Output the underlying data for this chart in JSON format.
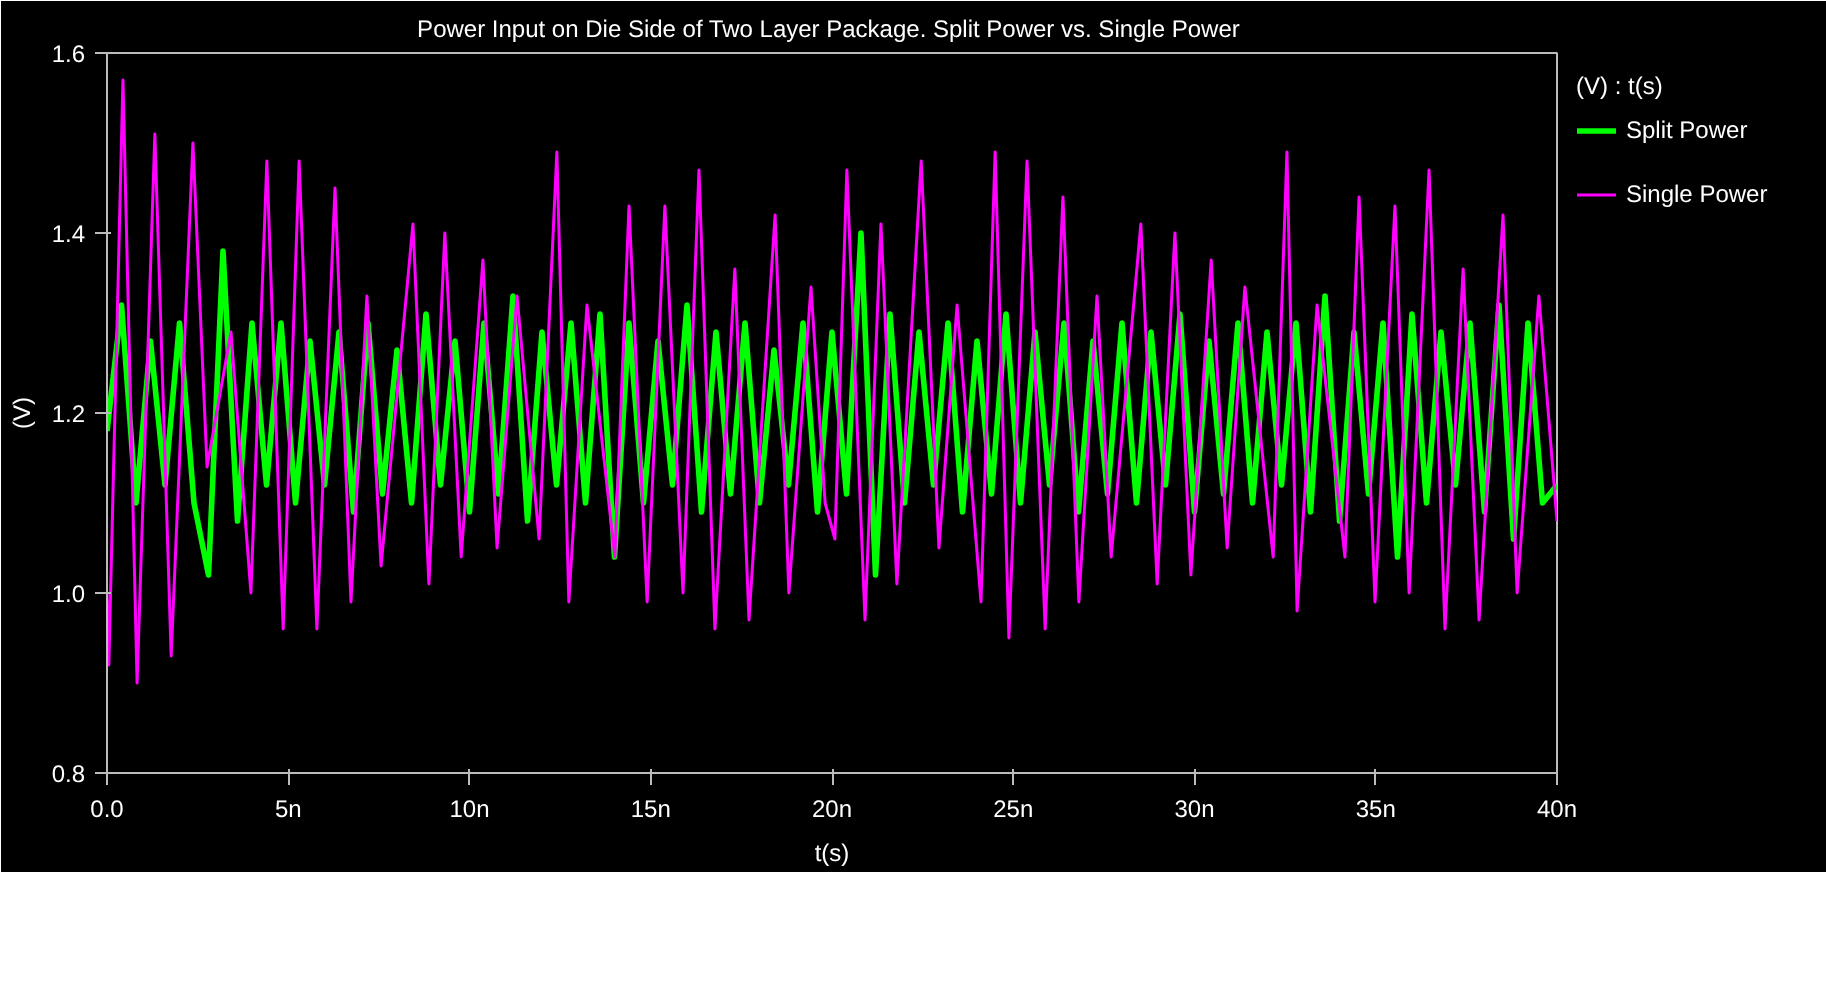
{
  "chart_data": {
    "type": "line",
    "title": "Power Input on Die Side of Two Layer Package.  Split Power vs. Single Power",
    "xlabel": "t(s)",
    "ylabel": "(V)",
    "legend_title": "(V) : t(s)",
    "legend": "top right",
    "grid": false,
    "line_style": "solid",
    "marker": "none",
    "xlim": [
      0,
      40
    ],
    "ylim": [
      0.8,
      1.6
    ],
    "xticks": [
      {
        "value": 0,
        "label": "0.0"
      },
      {
        "value": 5,
        "label": "5n"
      },
      {
        "value": 10,
        "label": "10n"
      },
      {
        "value": 15,
        "label": "15n"
      },
      {
        "value": 20,
        "label": "20n"
      },
      {
        "value": 25,
        "label": "25n"
      },
      {
        "value": 30,
        "label": "30n"
      },
      {
        "value": 35,
        "label": "35n"
      },
      {
        "value": 40,
        "label": "40n"
      }
    ],
    "yticks": [
      {
        "value": 0.8,
        "label": "0.8"
      },
      {
        "value": 1.0,
        "label": "1.0"
      },
      {
        "value": 1.2,
        "label": "1.2"
      },
      {
        "value": 1.4,
        "label": "1.4"
      },
      {
        "value": 1.6,
        "label": "1.6"
      }
    ],
    "series": [
      {
        "name": "Split Power",
        "color": "#00ff00",
        "x": [
          0,
          0.4,
          0.8,
          1.2,
          1.6,
          2.0,
          2.4,
          2.8,
          3.2,
          3.6,
          4.0,
          4.4,
          4.8,
          5.2,
          5.6,
          6.0,
          6.4,
          6.8,
          7.2,
          7.6,
          8.0,
          8.4,
          8.8,
          9.2,
          9.6,
          10.0,
          10.4,
          10.8,
          11.2,
          11.6,
          12.0,
          12.4,
          12.8,
          13.2,
          13.6,
          14.0,
          14.4,
          14.8,
          15.2,
          15.6,
          16.0,
          16.4,
          16.8,
          17.2,
          17.6,
          18.0,
          18.4,
          18.8,
          19.2,
          19.6,
          20.0,
          20.4,
          20.8,
          21.2,
          21.6,
          22.0,
          22.4,
          22.8,
          23.2,
          23.6,
          24.0,
          24.4,
          24.8,
          25.2,
          25.6,
          26.0,
          26.4,
          26.8,
          27.2,
          27.6,
          28.0,
          28.4,
          28.8,
          29.2,
          29.6,
          30.0,
          30.4,
          30.8,
          31.2,
          31.6,
          32.0,
          32.4,
          32.8,
          33.2,
          33.6,
          34.0,
          34.4,
          34.8,
          35.2,
          35.6,
          36.0,
          36.4,
          36.8,
          37.2,
          37.6,
          38.0,
          38.4,
          38.8,
          39.2,
          39.6,
          40.0
        ],
        "values": [
          1.18,
          1.32,
          1.1,
          1.28,
          1.12,
          1.3,
          1.1,
          1.02,
          1.38,
          1.08,
          1.3,
          1.12,
          1.3,
          1.1,
          1.28,
          1.12,
          1.29,
          1.09,
          1.3,
          1.11,
          1.27,
          1.1,
          1.31,
          1.12,
          1.28,
          1.09,
          1.3,
          1.11,
          1.33,
          1.08,
          1.29,
          1.12,
          1.3,
          1.1,
          1.31,
          1.04,
          1.3,
          1.1,
          1.28,
          1.12,
          1.32,
          1.09,
          1.29,
          1.11,
          1.3,
          1.1,
          1.27,
          1.12,
          1.3,
          1.09,
          1.29,
          1.11,
          1.4,
          1.02,
          1.31,
          1.1,
          1.29,
          1.12,
          1.3,
          1.09,
          1.28,
          1.11,
          1.31,
          1.1,
          1.29,
          1.12,
          1.3,
          1.09,
          1.28,
          1.11,
          1.3,
          1.1,
          1.29,
          1.12,
          1.31,
          1.09,
          1.28,
          1.11,
          1.3,
          1.1,
          1.29,
          1.12,
          1.3,
          1.09,
          1.33,
          1.08,
          1.29,
          1.11,
          1.3,
          1.04,
          1.31,
          1.1,
          1.29,
          1.12,
          1.3,
          1.09,
          1.32,
          1.06,
          1.3,
          1.1,
          1.12
        ]
      },
      {
        "name": "Single Power",
        "color": "#ff00ff",
        "x": [
          0,
          0.05,
          0.44,
          0.83,
          1.32,
          1.77,
          2.37,
          2.76,
          3.42,
          3.97,
          4.41,
          4.86,
          5.3,
          5.79,
          6.29,
          6.73,
          7.17,
          7.56,
          8.44,
          8.88,
          9.32,
          9.77,
          10.37,
          10.76,
          11.31,
          11.92,
          12.41,
          12.74,
          13.24,
          14.01,
          14.4,
          14.9,
          15.39,
          15.89,
          16.33,
          16.77,
          17.32,
          17.71,
          18.43,
          18.81,
          19.42,
          19.81,
          20.08,
          20.41,
          20.91,
          21.35,
          21.79,
          22.46,
          22.95,
          23.45,
          24.11,
          24.5,
          24.88,
          25.38,
          25.88,
          26.37,
          26.81,
          27.31,
          27.7,
          28.52,
          28.97,
          29.46,
          29.9,
          30.46,
          30.9,
          31.39,
          32.17,
          32.55,
          32.83,
          33.38,
          34.15,
          34.54,
          34.98,
          35.53,
          35.92,
          36.47,
          36.91,
          37.41,
          37.85,
          38.51,
          38.9,
          39.5,
          40.0
        ],
        "values": [
          1.0,
          0.92,
          1.57,
          0.9,
          1.51,
          0.93,
          1.5,
          1.14,
          1.29,
          1.0,
          1.48,
          0.96,
          1.48,
          0.96,
          1.45,
          0.99,
          1.33,
          1.03,
          1.41,
          1.01,
          1.4,
          1.04,
          1.37,
          1.05,
          1.33,
          1.06,
          1.49,
          0.99,
          1.32,
          1.04,
          1.43,
          0.99,
          1.43,
          1.0,
          1.47,
          0.96,
          1.36,
          0.97,
          1.42,
          1.0,
          1.34,
          1.1,
          1.06,
          1.47,
          0.97,
          1.41,
          1.01,
          1.48,
          1.05,
          1.32,
          0.99,
          1.49,
          0.95,
          1.48,
          0.96,
          1.44,
          0.99,
          1.33,
          1.04,
          1.41,
          1.01,
          1.4,
          1.02,
          1.37,
          1.05,
          1.34,
          1.04,
          1.49,
          0.98,
          1.32,
          1.04,
          1.44,
          0.99,
          1.43,
          1.0,
          1.47,
          0.96,
          1.36,
          0.97,
          1.42,
          1.0,
          1.33,
          1.08
        ]
      }
    ]
  }
}
